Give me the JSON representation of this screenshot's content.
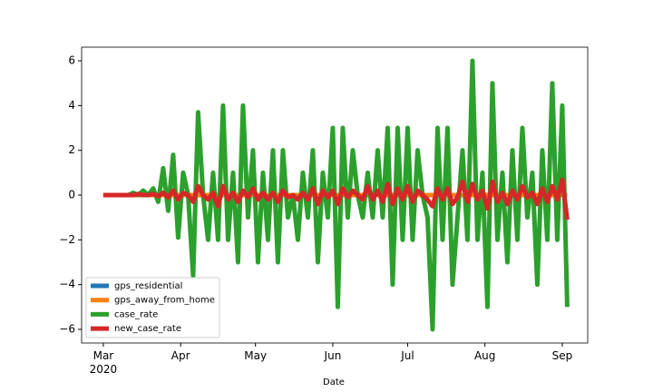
{
  "chart_data": {
    "type": "line",
    "x_label": "Date",
    "x": [
      0,
      2,
      4,
      6,
      8,
      10,
      12,
      14,
      16,
      18,
      20,
      22,
      24,
      26,
      28,
      30,
      32,
      34,
      36,
      38,
      40,
      42,
      44,
      46,
      48,
      50,
      52,
      54,
      56,
      58,
      60,
      62,
      64,
      66,
      68,
      70,
      72,
      74,
      76,
      78,
      80,
      82,
      84,
      86,
      88,
      90,
      92,
      94,
      96,
      98,
      100,
      102,
      104,
      106,
      108,
      110,
      112,
      114,
      116,
      118,
      120,
      122,
      124,
      126,
      128,
      130,
      132,
      134,
      136,
      138,
      140,
      142,
      144,
      146,
      148,
      150,
      152,
      154,
      156,
      158,
      160,
      162,
      164,
      166,
      168,
      170,
      172,
      174,
      176,
      178,
      180,
      182,
      184,
      186
    ],
    "series": [
      {
        "name": "gps_residential",
        "color": "#1f77b4",
        "values": [
          0,
          0,
          0,
          0,
          0,
          0,
          0,
          0,
          0,
          0,
          0,
          0,
          0,
          0,
          0,
          0,
          0,
          0,
          0,
          0,
          0,
          0,
          0,
          0,
          0,
          0,
          0,
          0,
          0,
          0,
          0,
          0,
          0,
          0,
          0,
          0,
          0,
          0,
          0,
          0,
          0,
          0,
          0,
          0,
          0,
          0,
          0,
          0,
          0,
          0,
          0,
          0,
          0,
          0,
          0,
          0,
          0,
          0,
          0,
          0,
          0,
          0,
          0,
          0,
          0,
          0,
          0,
          0,
          0,
          0,
          0,
          0,
          0,
          0,
          0,
          0,
          0,
          0,
          0,
          0,
          0,
          0,
          0,
          0,
          0,
          0,
          0,
          0,
          0,
          0,
          0,
          0,
          0,
          0
        ]
      },
      {
        "name": "gps_away_from_home",
        "color": "#ff7f0e",
        "values": [
          0,
          0,
          0,
          0,
          0,
          0,
          0,
          0,
          0,
          0,
          0,
          0,
          0,
          0,
          0,
          0,
          0,
          0,
          0,
          0,
          0,
          0,
          0,
          0,
          0,
          0,
          0,
          0,
          0,
          0,
          0,
          0,
          0,
          0,
          0,
          0,
          0,
          0,
          0,
          0,
          0,
          0,
          0,
          0,
          0,
          0,
          0,
          0,
          0,
          0,
          0,
          0,
          0,
          0,
          0,
          0,
          0,
          0,
          0,
          0,
          0,
          0,
          0,
          0,
          0,
          0,
          0,
          0,
          0,
          0,
          0,
          0,
          0,
          0,
          0,
          0,
          0,
          0,
          0,
          0,
          0,
          0,
          0,
          0,
          0,
          0,
          0,
          0,
          0,
          0,
          0,
          0,
          0,
          0
        ]
      },
      {
        "name": "case_rate",
        "color": "#2ca02c",
        "values": [
          0,
          0,
          0,
          0,
          0,
          0,
          0.1,
          0,
          0.2,
          0,
          0.3,
          -0.3,
          1.2,
          -0.7,
          1.8,
          -1.9,
          1,
          0,
          -3.6,
          3.7,
          0,
          -2,
          1,
          -2,
          4,
          -2,
          1,
          -3,
          4,
          -1,
          2,
          -3,
          1,
          -2,
          2,
          -3,
          2,
          -1,
          0,
          -2,
          1,
          -1,
          2,
          -3,
          1,
          -1,
          3,
          -5,
          3,
          -1,
          2,
          0,
          -1,
          1,
          -1,
          2,
          -1,
          3,
          -4,
          3,
          -2,
          3,
          -2,
          2,
          0,
          -1,
          -6,
          3,
          -2,
          3,
          -4,
          -1,
          2,
          -2,
          6,
          -2,
          1,
          -5,
          5,
          -2,
          1,
          -3,
          2,
          -2,
          3,
          -1,
          1,
          -4,
          2,
          -2,
          5,
          -2,
          4,
          -5
        ]
      },
      {
        "name": "new_case_rate",
        "color": "#d62728",
        "values": [
          0,
          0,
          0,
          0,
          0,
          0,
          0,
          0.05,
          0,
          0,
          0.05,
          -0.05,
          0.1,
          -0.1,
          0.2,
          -0.2,
          0.1,
          0,
          -0.3,
          0.4,
          0,
          -0.2,
          0.1,
          -0.5,
          0.4,
          -0.2,
          0.1,
          -0.3,
          0.2,
          -0.1,
          0.3,
          -0.2,
          0.1,
          -0.2,
          0.1,
          -0.3,
          0.2,
          -0.1,
          0,
          -0.2,
          0.1,
          -0.2,
          0.3,
          -0.4,
          0.2,
          -0.1,
          0.2,
          -0.4,
          0.3,
          -0.1,
          0.2,
          0,
          -0.2,
          0.4,
          -0.2,
          0.2,
          -0.3,
          0.5,
          -0.4,
          0.3,
          -0.2,
          0.4,
          -0.3,
          0.2,
          0,
          -0.2,
          -0.5,
          0.3,
          -0.2,
          0.3,
          -0.4,
          -0.1,
          0.6,
          -0.3,
          0.5,
          -0.2,
          0.2,
          -0.6,
          0.6,
          -0.3,
          0.1,
          -0.4,
          0.2,
          -0.2,
          0.4,
          -0.1,
          0.1,
          -0.4,
          0.3,
          -0.3,
          0.4,
          -0.2,
          0.7,
          -1.1
        ]
      }
    ],
    "xlim": [
      -8.7,
      194.2
    ],
    "xticks": [
      {
        "value": 0,
        "label": "Mar\n2020"
      },
      {
        "value": 31,
        "label": "Apr"
      },
      {
        "value": 61,
        "label": "May"
      },
      {
        "value": 92,
        "label": "Jun"
      },
      {
        "value": 122,
        "label": "Jul"
      },
      {
        "value": 153,
        "label": "Aug"
      },
      {
        "value": 184,
        "label": "Sep"
      }
    ],
    "ylim": [
      -6.61,
      6.61
    ],
    "yticks": [
      {
        "value": -6,
        "label": "−6"
      },
      {
        "value": -4,
        "label": "−4"
      },
      {
        "value": -2,
        "label": "−2"
      },
      0,
      2,
      4,
      6
    ],
    "legend": "lower left"
  }
}
